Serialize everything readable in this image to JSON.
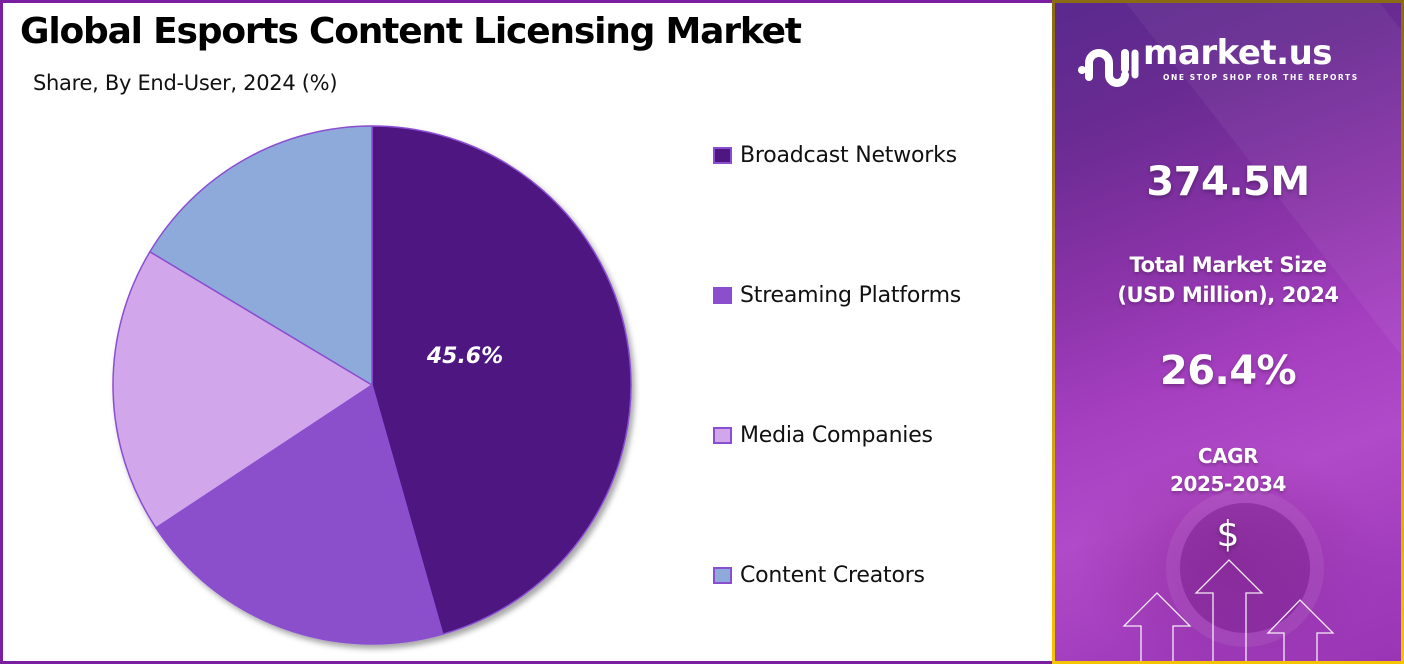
{
  "header": {
    "title": "Global Esports Content Licensing Market",
    "subtitle": "Share, By End-User, 2024 (%)"
  },
  "chart_data": {
    "type": "pie",
    "title": "Global Esports Content Licensing Market",
    "subtitle": "Share, By End-User, 2024 (%)",
    "categories": [
      "Broadcast Networks",
      "Streaming Platforms",
      "Media Companies",
      "Content Creators"
    ],
    "values": [
      45.6,
      20.1,
      17.9,
      16.4
    ],
    "colors": [
      "#4e1681",
      "#8b4fcc",
      "#d2a6ea",
      "#8eaadb"
    ],
    "start_angle_deg": 0,
    "direction": "clockwise",
    "data_labels": [
      {
        "category": "Broadcast Networks",
        "text": "45.6%"
      }
    ],
    "legend_position": "right",
    "grid": false
  },
  "legend": {
    "items": [
      {
        "label": "Broadcast Networks",
        "color": "#4e1681"
      },
      {
        "label": "Streaming Platforms",
        "color": "#8b4fcc"
      },
      {
        "label": "Media Companies",
        "color": "#d2a6ea"
      },
      {
        "label": "Content Creators",
        "color": "#8eaadb"
      }
    ]
  },
  "pie": {
    "highlight_label": "45.6%",
    "outline_color": "#8a4fd0"
  },
  "panel": {
    "brand": {
      "name": "market.us",
      "tagline": "ONE STOP SHOP FOR THE REPORTS",
      "icon": "market-us-logo-icon"
    },
    "market_size": {
      "value": "374.5M",
      "caption_line1": "Total Market Size",
      "caption_line2": "(USD Million), 2024"
    },
    "cagr": {
      "value": "26.4%",
      "caption_line1": "CAGR",
      "caption_line2": "2025-2034"
    },
    "decor": {
      "dollar_symbol": "$",
      "icon": "growth-arrows-icon"
    },
    "colors": {
      "border_top": "#8a6a12",
      "border_bottom": "#f5c400",
      "bg_top": "#5a2a8e",
      "bg_bottom": "#b14ac8"
    }
  },
  "frame": {
    "border_color": "#7b1fa2"
  }
}
